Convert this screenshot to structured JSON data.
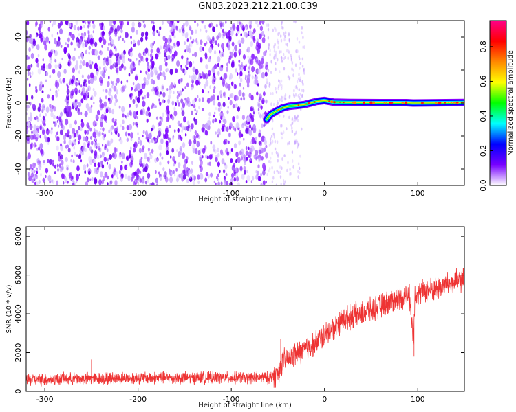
{
  "title": "GN03.2023.212.21.00.C39",
  "chart_data": [
    {
      "type": "heatmap",
      "xlabel": "Height of straight line (km)",
      "ylabel": "Frequency (Hz)",
      "xlim": [
        -320,
        150
      ],
      "ylim": [
        -50,
        50
      ],
      "xticks": [
        -300,
        -200,
        -100,
        0,
        100
      ],
      "yticks": [
        -40,
        -20,
        0,
        20,
        40
      ],
      "noise_region_x": [
        -320,
        -62
      ],
      "signal_trace": {
        "x": [
          -62,
          -58,
          -52,
          -45,
          -38,
          -30,
          -22,
          -15,
          -8,
          0,
          10,
          30,
          60,
          88,
          95,
          150
        ],
        "y": [
          -10,
          -7,
          -5,
          -3,
          -2,
          -1.5,
          -1,
          0,
          1,
          1.5,
          0.5,
          0.3,
          0.2,
          0.2,
          0,
          0.3
        ]
      },
      "colorbar": {
        "label": "Normalized spectral amplitude",
        "ticks": [
          "0.0",
          "0.2",
          "0.4",
          "0.6",
          "0.8"
        ],
        "range": [
          0,
          0.95
        ],
        "colors": [
          "#ffffff",
          "#7700ff",
          "#0000ff",
          "#00ffff",
          "#00ff00",
          "#ffff00",
          "#ff8800",
          "#ff0000",
          "#ff0088"
        ]
      }
    },
    {
      "type": "line",
      "xlabel": "Height of straight line (km)",
      "ylabel": "SNR (10 * v/v)",
      "xlim": [
        -320,
        150
      ],
      "ylim": [
        0,
        8500
      ],
      "xticks": [
        -300,
        -200,
        -100,
        0,
        100
      ],
      "yticks": [
        0,
        2000,
        4000,
        6000,
        8000
      ],
      "series": [
        {
          "color": "#ee3333",
          "trend_x": [
            -320,
            -200,
            -100,
            -60,
            -50,
            -45,
            -40,
            -30,
            -20,
            -10,
            0,
            10,
            20,
            30,
            40,
            50,
            60,
            70,
            80,
            88,
            92,
            95,
            97,
            100,
            110,
            120,
            130,
            140,
            150
          ],
          "trend_y": [
            600,
            700,
            700,
            700,
            900,
            1500,
            1700,
            1900,
            2200,
            2500,
            2900,
            3300,
            3700,
            3900,
            4000,
            4200,
            4400,
            4600,
            4800,
            5000,
            4800,
            2500,
            5000,
            5100,
            5200,
            5300,
            5500,
            5600,
            5800
          ],
          "spikes": [
            {
              "x": 95,
              "y": 8400
            },
            {
              "x": 96,
              "y": 1800
            },
            {
              "x": -47,
              "y": 2700
            },
            {
              "x": -250,
              "y": 1650
            }
          ]
        }
      ]
    }
  ]
}
